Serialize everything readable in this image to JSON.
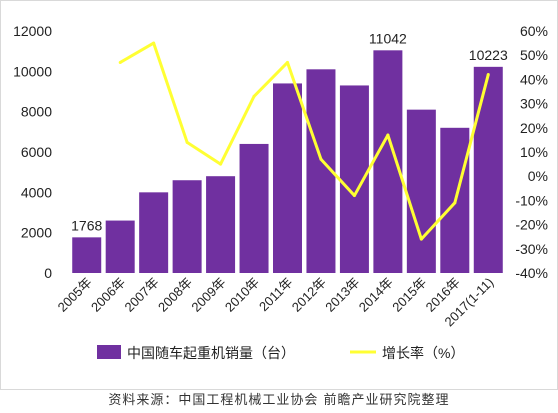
{
  "chart_data": {
    "type": "bar",
    "categories": [
      "2005年",
      "2006年",
      "2007年",
      "2008年",
      "2009年",
      "2010年",
      "2011年",
      "2012年",
      "2013年",
      "2014年",
      "2015年",
      "2016年",
      "2017(1-11)"
    ],
    "series": [
      {
        "name": "中国随车起重机销量（台）",
        "type": "bar",
        "axis": "left",
        "color": "#7030a0",
        "values": [
          1768,
          2600,
          4000,
          4600,
          4800,
          6400,
          9400,
          10100,
          9300,
          11042,
          8100,
          7200,
          10223
        ]
      },
      {
        "name": "增长率（%）",
        "type": "line",
        "axis": "right",
        "color": "#ffff33",
        "values": [
          null,
          47,
          55,
          14,
          5,
          33,
          47,
          7,
          -8,
          17,
          -26,
          -11,
          42
        ]
      }
    ],
    "data_labels": [
      {
        "index": 0,
        "text": "1768"
      },
      {
        "index": 9,
        "text": "11042"
      },
      {
        "index": 12,
        "text": "10223"
      }
    ],
    "y_left": {
      "min": 0,
      "max": 12000,
      "ticks": [
        "0",
        "2000",
        "4000",
        "6000",
        "8000",
        "10000",
        "12000"
      ]
    },
    "y_right": {
      "min": -40,
      "max": 60,
      "ticks": [
        "-40%",
        "-30%",
        "-20%",
        "-10%",
        "0%",
        "10%",
        "20%",
        "30%",
        "40%",
        "50%",
        "60%"
      ]
    },
    "legend_position": "bottom",
    "grid": false
  },
  "source_note": "资料来源：中国工程机械工业协会 前瞻产业研究院整理"
}
